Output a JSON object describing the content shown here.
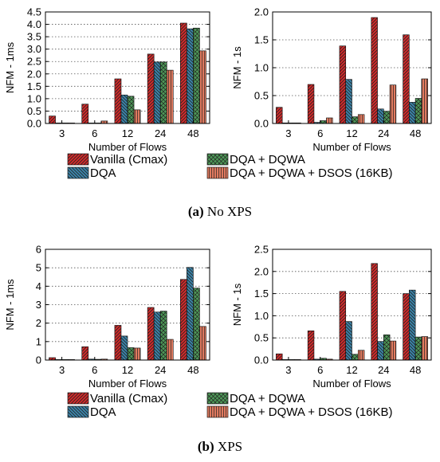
{
  "legend": [
    {
      "label": "Vanilla (Cmax)",
      "color": "#d42a2a",
      "pattern": "diag-right"
    },
    {
      "label": "DQA",
      "color": "#3b85ab",
      "pattern": "diag-left"
    },
    {
      "label": "DQA + DQWA",
      "color": "#4e9a58",
      "pattern": "cross"
    },
    {
      "label": "DQA + DQWA + DSOS (16KB)",
      "color": "#e07a5f",
      "pattern": "vert"
    }
  ],
  "captions": [
    {
      "letter": "(a)",
      "text": "No XPS"
    },
    {
      "letter": "(b)",
      "text": "XPS"
    }
  ],
  "chart_data": [
    {
      "type": "bar",
      "panel": "a-left",
      "xlabel": "Number of Flows",
      "ylabel": "NFM - 1ms",
      "categories": [
        "3",
        "6",
        "12",
        "24",
        "48"
      ],
      "ylim": [
        0,
        4.5
      ],
      "yticks": [
        "0.0",
        "0.5",
        "1.0",
        "1.5",
        "2.0",
        "2.5",
        "3.0",
        "3.5",
        "4.0",
        "4.5"
      ],
      "grid": true,
      "series": [
        {
          "name": "Vanilla (Cmax)",
          "values": [
            0.3,
            0.78,
            1.8,
            2.8,
            4.05
          ]
        },
        {
          "name": "DQA",
          "values": [
            0.02,
            0.01,
            1.15,
            2.48,
            3.82
          ]
        },
        {
          "name": "DQA + DQWA",
          "values": [
            0.02,
            0.01,
            1.1,
            2.48,
            3.85
          ]
        },
        {
          "name": "DQA + DQWA + DSOS (16KB)",
          "values": [
            0.01,
            0.1,
            0.55,
            2.15,
            2.93
          ]
        }
      ]
    },
    {
      "type": "bar",
      "panel": "a-right",
      "xlabel": "Number of Flows",
      "ylabel": "NFM - 1s",
      "categories": [
        "3",
        "6",
        "12",
        "24",
        "48"
      ],
      "ylim": [
        0,
        2.0
      ],
      "yticks": [
        "0.0",
        "0.5",
        "1.0",
        "1.5",
        "2.0"
      ],
      "grid": true,
      "series": [
        {
          "name": "Vanilla (Cmax)",
          "values": [
            0.29,
            0.7,
            1.39,
            1.9,
            1.59
          ]
        },
        {
          "name": "DQA",
          "values": [
            0.01,
            0.02,
            0.79,
            0.26,
            0.38
          ]
        },
        {
          "name": "DQA + DQWA",
          "values": [
            0.01,
            0.05,
            0.12,
            0.22,
            0.45
          ]
        },
        {
          "name": "DQA + DQWA + DSOS (16KB)",
          "values": [
            0.01,
            0.1,
            0.16,
            0.69,
            0.8
          ]
        }
      ]
    },
    {
      "type": "bar",
      "panel": "b-left",
      "xlabel": "Number of Flows",
      "ylabel": "NFM - 1ms",
      "categories": [
        "3",
        "6",
        "12",
        "24",
        "48"
      ],
      "ylim": [
        0,
        6
      ],
      "yticks": [
        "0",
        "1",
        "2",
        "3",
        "4",
        "5",
        "6"
      ],
      "grid": true,
      "series": [
        {
          "name": "Vanilla (Cmax)",
          "values": [
            0.13,
            0.72,
            1.88,
            2.85,
            4.37
          ]
        },
        {
          "name": "DQA",
          "values": [
            0.02,
            0.05,
            1.3,
            2.6,
            5.02
          ]
        },
        {
          "name": "DQA + DQWA",
          "values": [
            0.01,
            0.04,
            0.67,
            2.65,
            3.9
          ]
        },
        {
          "name": "DQA + DQWA + DSOS (16KB)",
          "values": [
            0.01,
            0.05,
            0.65,
            1.12,
            1.82
          ]
        }
      ]
    },
    {
      "type": "bar",
      "panel": "b-right",
      "xlabel": "Number of Flows",
      "ylabel": "NFM - 1s",
      "categories": [
        "3",
        "6",
        "12",
        "24",
        "48"
      ],
      "ylim": [
        0,
        2.5
      ],
      "yticks": [
        "0.0",
        "0.5",
        "1.0",
        "1.5",
        "2.0",
        "2.5"
      ],
      "grid": true,
      "series": [
        {
          "name": "Vanilla (Cmax)",
          "values": [
            0.14,
            0.66,
            1.55,
            2.18,
            1.5
          ]
        },
        {
          "name": "DQA",
          "values": [
            0.01,
            0.02,
            0.87,
            0.42,
            1.58
          ]
        },
        {
          "name": "DQA + DQWA",
          "values": [
            0.01,
            0.04,
            0.13,
            0.57,
            0.52
          ]
        },
        {
          "name": "DQA + DQWA + DSOS (16KB)",
          "values": [
            0.01,
            0.02,
            0.22,
            0.43,
            0.53
          ]
        }
      ]
    }
  ]
}
